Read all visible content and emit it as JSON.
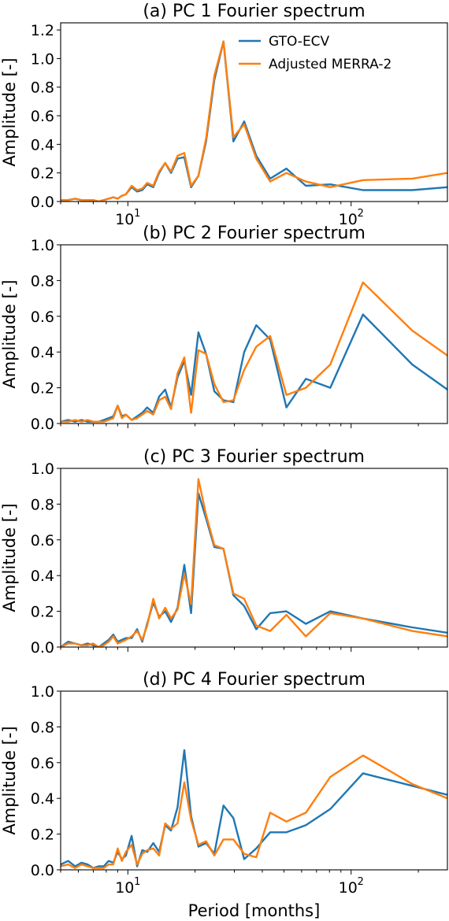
{
  "figure": {
    "xlabel": "Period [months]",
    "colors": {
      "gto": "#1f77b4",
      "merra": "#ff7f0e"
    }
  },
  "chart_data": [
    {
      "type": "line",
      "title": "(a) PC 1 Fourier spectrum",
      "xlabel": "",
      "ylabel": "Amplitude [-]",
      "xscale": "log",
      "xlim": [
        5,
        270
      ],
      "ylim": [
        0,
        1.25
      ],
      "yticks": [
        "0.0",
        "0.2",
        "0.4",
        "0.6",
        "0.8",
        "1.0",
        "1.2"
      ],
      "xticks": [
        {
          "base": "10",
          "exp": "1"
        },
        {
          "base": "10",
          "exp": "2"
        }
      ],
      "legend": {
        "position": "top-right",
        "entries": [
          "GTO-ECV",
          "Adjusted MERRA-2"
        ]
      },
      "series": [
        {
          "name": "GTO-ECV",
          "color": "#1f77b4",
          "x": [
            5,
            5.4,
            5.8,
            6.2,
            6.6,
            7,
            7.4,
            7.8,
            8.2,
            8.6,
            9,
            9.4,
            9.8,
            10.4,
            11,
            11.6,
            12.2,
            13,
            13.8,
            14.7,
            15.6,
            16.7,
            17.9,
            19.2,
            20.7,
            22.4,
            24.4,
            26.8,
            29.7,
            33.2,
            37.6,
            43.4,
            51.3,
            62.7,
            80.7,
            113,
            188,
            270
          ],
          "values": [
            0.01,
            0.01,
            0.02,
            0.01,
            0.01,
            0.01,
            0.0,
            0.01,
            0.02,
            0.03,
            0.02,
            0.04,
            0.05,
            0.1,
            0.07,
            0.08,
            0.12,
            0.1,
            0.2,
            0.27,
            0.2,
            0.3,
            0.31,
            0.1,
            0.18,
            0.42,
            0.85,
            1.12,
            0.42,
            0.56,
            0.32,
            0.16,
            0.23,
            0.11,
            0.12,
            0.08,
            0.08,
            0.1
          ]
        },
        {
          "name": "Adjusted MERRA-2",
          "color": "#ff7f0e",
          "x": [
            5,
            5.4,
            5.8,
            6.2,
            6.6,
            7,
            7.4,
            7.8,
            8.2,
            8.6,
            9,
            9.4,
            9.8,
            10.4,
            11,
            11.6,
            12.2,
            13,
            13.8,
            14.7,
            15.6,
            16.7,
            17.9,
            19.2,
            20.7,
            22.4,
            24.4,
            26.8,
            29.7,
            33.2,
            37.6,
            43.4,
            51.3,
            62.7,
            80.7,
            113,
            188,
            270
          ],
          "values": [
            0.01,
            0.01,
            0.02,
            0.01,
            0.01,
            0.01,
            0.0,
            0.01,
            0.02,
            0.03,
            0.02,
            0.04,
            0.05,
            0.11,
            0.08,
            0.09,
            0.13,
            0.11,
            0.21,
            0.27,
            0.21,
            0.32,
            0.34,
            0.11,
            0.18,
            0.44,
            0.88,
            1.12,
            0.45,
            0.54,
            0.3,
            0.14,
            0.2,
            0.14,
            0.1,
            0.15,
            0.16,
            0.2
          ]
        }
      ]
    },
    {
      "type": "line",
      "title": "(b) PC 2 Fourier spectrum",
      "xlabel": "",
      "ylabel": "Amplitude [-]",
      "xscale": "log",
      "xlim": [
        5,
        270
      ],
      "ylim": [
        0,
        1.0
      ],
      "yticks": [
        "0.0",
        "0.2",
        "0.4",
        "0.6",
        "0.8",
        "1.0"
      ],
      "xticks": [],
      "series": [
        {
          "name": "GTO-ECV",
          "color": "#1f77b4",
          "x": [
            5,
            5.4,
            5.8,
            6.2,
            6.6,
            7,
            7.4,
            7.8,
            8.2,
            8.6,
            9,
            9.4,
            9.8,
            10.4,
            11,
            11.6,
            12.2,
            13,
            13.8,
            14.7,
            15.6,
            16.7,
            17.9,
            19.2,
            20.7,
            22.4,
            24.4,
            26.8,
            29.7,
            33.2,
            37.6,
            43.4,
            51.3,
            62.7,
            80.7,
            113,
            188,
            270
          ],
          "values": [
            0.01,
            0.02,
            0.01,
            0.02,
            0.01,
            0.01,
            0.01,
            0.02,
            0.03,
            0.04,
            0.1,
            0.04,
            0.05,
            0.02,
            0.04,
            0.06,
            0.09,
            0.06,
            0.15,
            0.19,
            0.09,
            0.26,
            0.35,
            0.16,
            0.51,
            0.39,
            0.18,
            0.13,
            0.12,
            0.4,
            0.55,
            0.47,
            0.09,
            0.25,
            0.2,
            0.61,
            0.33,
            0.19
          ]
        },
        {
          "name": "Adjusted MERRA-2",
          "color": "#ff7f0e",
          "x": [
            5,
            5.4,
            5.8,
            6.2,
            6.6,
            7,
            7.4,
            7.8,
            8.2,
            8.6,
            9,
            9.4,
            9.8,
            10.4,
            11,
            11.6,
            12.2,
            13,
            13.8,
            14.7,
            15.6,
            16.7,
            17.9,
            19.2,
            20.7,
            22.4,
            24.4,
            26.8,
            29.7,
            33.2,
            37.6,
            43.4,
            51.3,
            62.7,
            80.7,
            113,
            188,
            270
          ],
          "values": [
            0.01,
            0.01,
            0.02,
            0.01,
            0.02,
            0.01,
            0.01,
            0.01,
            0.02,
            0.03,
            0.1,
            0.03,
            0.05,
            0.02,
            0.03,
            0.05,
            0.07,
            0.05,
            0.13,
            0.15,
            0.08,
            0.28,
            0.37,
            0.06,
            0.41,
            0.39,
            0.22,
            0.12,
            0.13,
            0.3,
            0.43,
            0.49,
            0.16,
            0.2,
            0.33,
            0.79,
            0.52,
            0.38
          ]
        }
      ]
    },
    {
      "type": "line",
      "title": "(c) PC 3 Fourier spectrum",
      "xlabel": "",
      "ylabel": "Amplitude [-]",
      "xscale": "log",
      "xlim": [
        5,
        270
      ],
      "ylim": [
        0,
        1.0
      ],
      "yticks": [
        "0.0",
        "0.2",
        "0.4",
        "0.6",
        "0.8",
        "1.0"
      ],
      "xticks": [],
      "series": [
        {
          "name": "GTO-ECV",
          "color": "#1f77b4",
          "x": [
            5,
            5.4,
            5.8,
            6.2,
            6.6,
            7,
            7.4,
            7.8,
            8.2,
            8.6,
            9,
            9.4,
            9.8,
            10.4,
            11,
            11.6,
            12.2,
            13,
            13.8,
            14.7,
            15.6,
            16.7,
            17.9,
            19.2,
            20.7,
            22.4,
            24.4,
            26.8,
            29.7,
            33.2,
            37.6,
            43.4,
            51.3,
            62.7,
            80.7,
            113,
            188,
            270
          ],
          "values": [
            0.0,
            0.03,
            0.02,
            0.01,
            0.02,
            0.01,
            0.0,
            0.02,
            0.04,
            0.07,
            0.03,
            0.04,
            0.05,
            0.05,
            0.1,
            0.03,
            0.13,
            0.25,
            0.17,
            0.2,
            0.14,
            0.22,
            0.46,
            0.19,
            0.86,
            0.72,
            0.56,
            0.55,
            0.29,
            0.23,
            0.1,
            0.19,
            0.2,
            0.13,
            0.2,
            0.16,
            0.11,
            0.08
          ]
        },
        {
          "name": "Adjusted MERRA-2",
          "color": "#ff7f0e",
          "x": [
            5,
            5.4,
            5.8,
            6.2,
            6.6,
            7,
            7.4,
            7.8,
            8.2,
            8.6,
            9,
            9.4,
            9.8,
            10.4,
            11,
            11.6,
            12.2,
            13,
            13.8,
            14.7,
            15.6,
            16.7,
            17.9,
            19.2,
            20.7,
            22.4,
            24.4,
            26.8,
            29.7,
            33.2,
            37.6,
            43.4,
            51.3,
            62.7,
            80.7,
            113,
            188,
            270
          ],
          "values": [
            0.0,
            0.02,
            0.02,
            0.01,
            0.01,
            0.02,
            0.0,
            0.01,
            0.03,
            0.06,
            0.02,
            0.03,
            0.04,
            0.06,
            0.09,
            0.04,
            0.12,
            0.27,
            0.16,
            0.22,
            0.16,
            0.21,
            0.41,
            0.24,
            0.94,
            0.74,
            0.57,
            0.55,
            0.3,
            0.27,
            0.12,
            0.09,
            0.18,
            0.06,
            0.19,
            0.16,
            0.09,
            0.06
          ]
        }
      ]
    },
    {
      "type": "line",
      "title": "(d) PC 4 Fourier spectrum",
      "xlabel": "Period [months]",
      "ylabel": "Amplitude [-]",
      "xscale": "log",
      "xlim": [
        5,
        270
      ],
      "ylim": [
        0,
        1.0
      ],
      "yticks": [
        "0.0",
        "0.2",
        "0.4",
        "0.6",
        "0.8",
        "1.0"
      ],
      "xticks": [
        {
          "base": "10",
          "exp": "1"
        },
        {
          "base": "10",
          "exp": "2"
        }
      ],
      "series": [
        {
          "name": "GTO-ECV",
          "color": "#1f77b4",
          "x": [
            5,
            5.4,
            5.8,
            6.2,
            6.6,
            7,
            7.4,
            7.8,
            8.2,
            8.6,
            9,
            9.4,
            9.8,
            10.4,
            11,
            11.6,
            12.2,
            13,
            13.8,
            14.7,
            15.6,
            16.7,
            17.9,
            19.2,
            20.7,
            22.4,
            24.4,
            26.8,
            29.7,
            33.2,
            37.6,
            43.4,
            51.3,
            62.7,
            80.7,
            113,
            188,
            270
          ],
          "values": [
            0.03,
            0.05,
            0.02,
            0.04,
            0.03,
            0.01,
            0.02,
            0.02,
            0.05,
            0.04,
            0.1,
            0.06,
            0.08,
            0.19,
            0.02,
            0.11,
            0.1,
            0.15,
            0.1,
            0.25,
            0.22,
            0.35,
            0.67,
            0.3,
            0.13,
            0.15,
            0.09,
            0.36,
            0.29,
            0.06,
            0.12,
            0.21,
            0.21,
            0.25,
            0.34,
            0.54,
            0.47,
            0.42
          ]
        },
        {
          "name": "Adjusted MERRA-2",
          "color": "#ff7f0e",
          "x": [
            5,
            5.4,
            5.8,
            6.2,
            6.6,
            7,
            7.4,
            7.8,
            8.2,
            8.6,
            9,
            9.4,
            9.8,
            10.4,
            11,
            11.6,
            12.2,
            13,
            13.8,
            14.7,
            15.6,
            16.7,
            17.9,
            19.2,
            20.7,
            22.4,
            24.4,
            26.8,
            29.7,
            33.2,
            37.6,
            43.4,
            51.3,
            62.7,
            80.7,
            113,
            188,
            270
          ],
          "values": [
            0.02,
            0.03,
            0.01,
            0.03,
            0.02,
            0.01,
            0.01,
            0.01,
            0.03,
            0.03,
            0.12,
            0.05,
            0.1,
            0.14,
            0.03,
            0.09,
            0.11,
            0.12,
            0.08,
            0.26,
            0.23,
            0.26,
            0.49,
            0.28,
            0.14,
            0.16,
            0.08,
            0.17,
            0.17,
            0.09,
            0.07,
            0.32,
            0.27,
            0.32,
            0.52,
            0.64,
            0.48,
            0.4
          ]
        }
      ]
    }
  ]
}
